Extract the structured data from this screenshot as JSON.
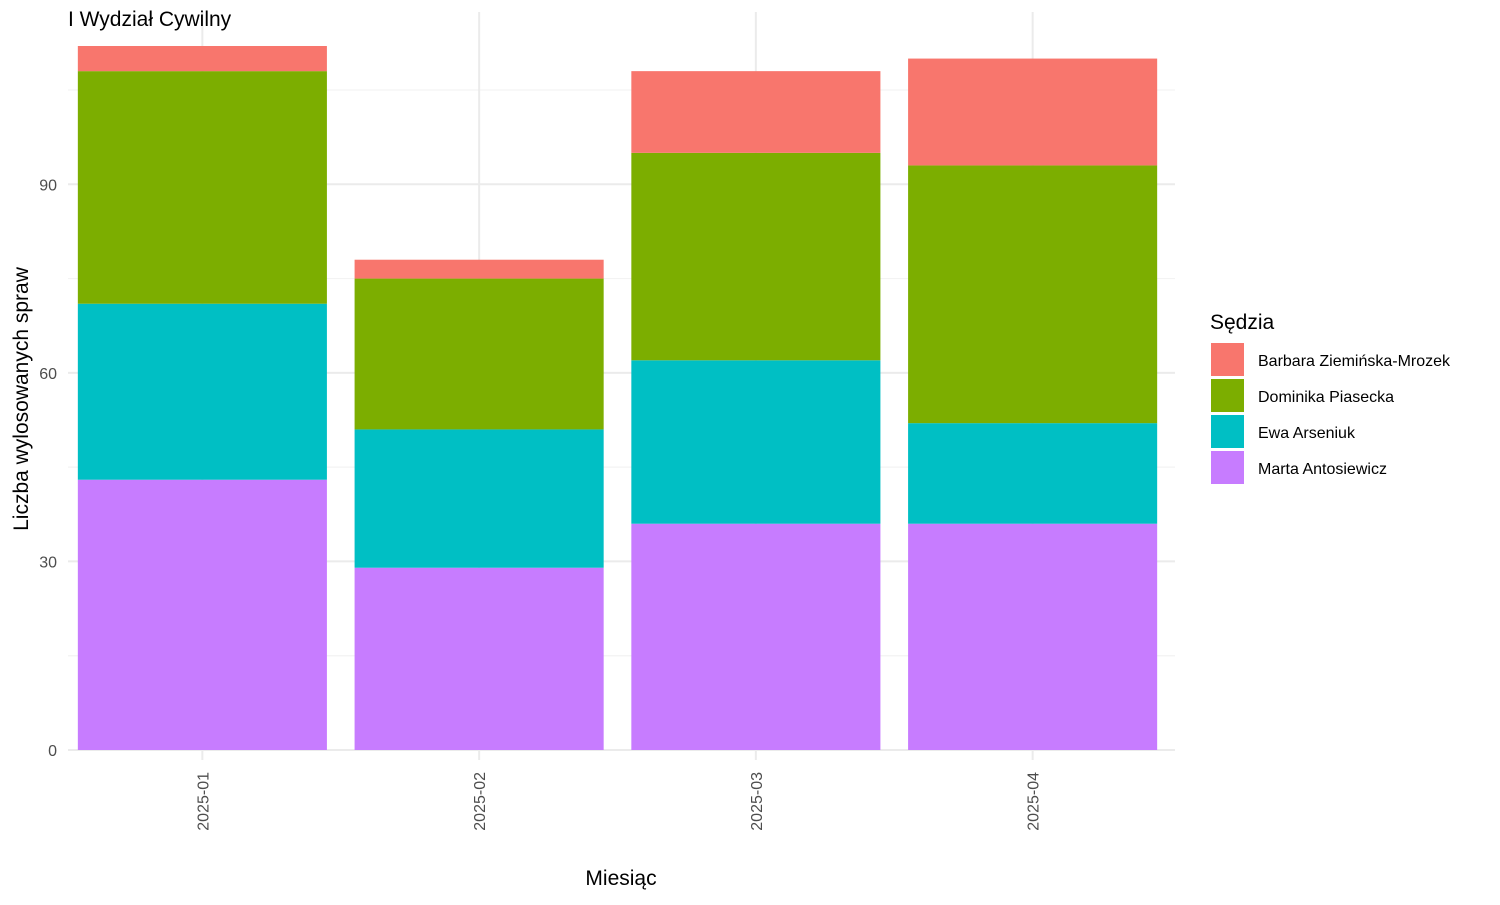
{
  "chart_data": {
    "type": "bar",
    "stacked": true,
    "title": "I Wydział Cywilny",
    "xlabel": "Miesiąc",
    "ylabel": "Liczba wylosowanych spraw",
    "categories": [
      "2025-01",
      "2025-02",
      "2025-03",
      "2025-04"
    ],
    "y_ticks": [
      0,
      30,
      60,
      90
    ],
    "ylim": [
      0,
      117
    ],
    "grid": true,
    "legend": {
      "title": "Sędzia",
      "position": "right"
    },
    "series": [
      {
        "name": "Marta Antosiewicz",
        "color": "#C77CFF",
        "values": [
          43,
          29,
          36,
          36
        ]
      },
      {
        "name": "Ewa Arseniuk",
        "color": "#00BFC4",
        "values": [
          28,
          22,
          26,
          16
        ]
      },
      {
        "name": "Dominika Piasecka",
        "color": "#7CAE00",
        "values": [
          37,
          24,
          33,
          41
        ]
      },
      {
        "name": "Barbara Ziemińska-Mrozek",
        "color": "#F8766D",
        "values": [
          4,
          3,
          13,
          17
        ]
      }
    ],
    "legend_order": [
      "Barbara Ziemińska-Mrozek",
      "Dominika Piasecka",
      "Ewa Arseniuk",
      "Marta Antosiewicz"
    ]
  }
}
